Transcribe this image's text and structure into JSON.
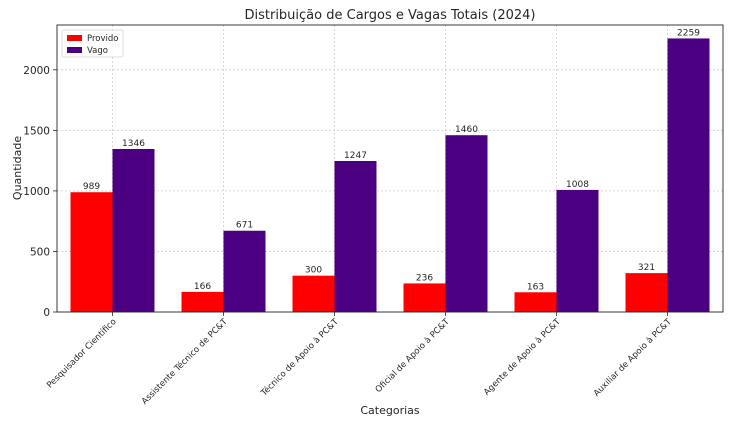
{
  "chart_data": {
    "type": "bar",
    "title": "Distribuição de Cargos e Vagas Totais (2024)",
    "xlabel": "Categorias",
    "ylabel": "Quantidade",
    "categories": [
      "Pesquisador Científico",
      "Assistente Técnico de PC&T",
      "Técnico de Apoio à PC&T",
      "Oficial de Apoio à PC&T",
      "Agente de Apoio à PC&T",
      "Auxiliar de Apoio à PC&T"
    ],
    "series": [
      {
        "name": "Provido",
        "color": "#ff0000",
        "values": [
          989,
          166,
          300,
          236,
          163,
          321
        ]
      },
      {
        "name": "Vago",
        "color": "#4b0082",
        "values": [
          1346,
          671,
          1247,
          1460,
          1008,
          2259
        ]
      }
    ],
    "ylim": [
      0,
      2370
    ],
    "yticks": [
      0,
      500,
      1000,
      1500,
      2000
    ],
    "grid": true,
    "legend_position": "top-left"
  }
}
